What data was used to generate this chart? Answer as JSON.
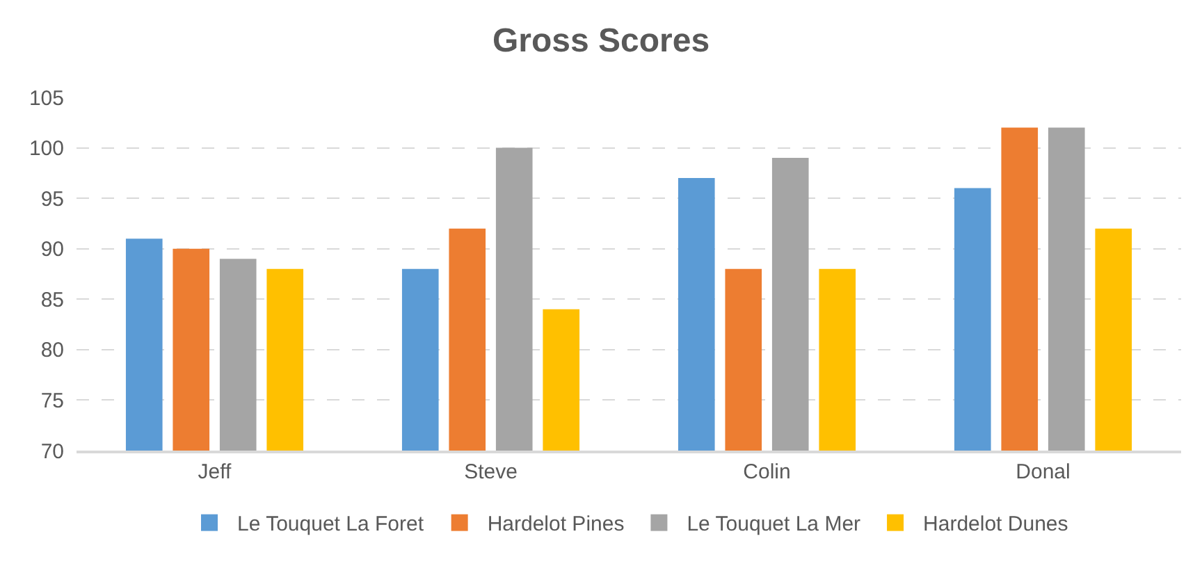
{
  "chart_data": {
    "type": "bar",
    "title": "Gross Scores",
    "categories": [
      "Jeff",
      "Steve",
      "Colin",
      "Donal"
    ],
    "series": [
      {
        "name": "Le Touquet La Foret",
        "color": "#5b9bd5",
        "values": [
          91,
          88,
          97,
          96
        ]
      },
      {
        "name": "Hardelot Pines",
        "color": "#ed7d31",
        "values": [
          90,
          92,
          88,
          102
        ]
      },
      {
        "name": "Le Touquet La Mer",
        "color": "#a5a5a5",
        "values": [
          89,
          100,
          99,
          102
        ]
      },
      {
        "name": "Hardelot Dunes",
        "color": "#ffc000",
        "values": [
          88,
          84,
          88,
          92
        ]
      }
    ],
    "ylim": [
      70,
      105
    ],
    "yticks": [
      70,
      75,
      80,
      85,
      90,
      95,
      100,
      105
    ],
    "grid": "y",
    "legend": "bottom"
  }
}
